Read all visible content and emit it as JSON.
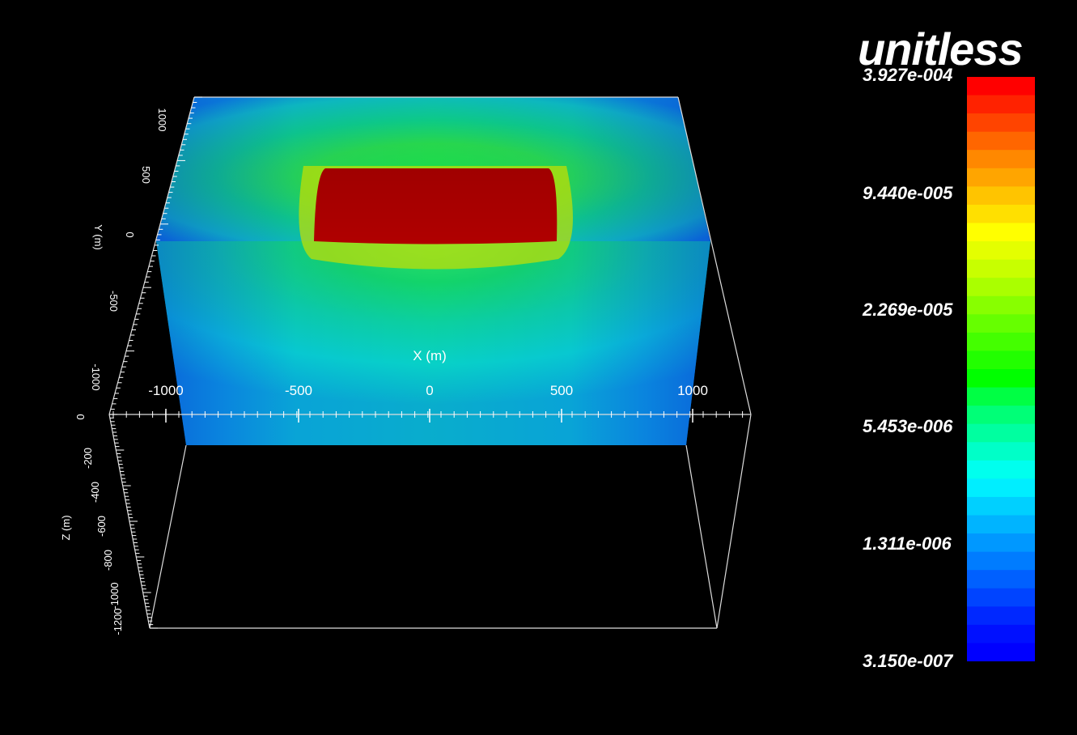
{
  "colorbar": {
    "title": "unitless",
    "labels": [
      "3.927e-004",
      "9.440e-005",
      "2.269e-005",
      "5.453e-006",
      "1.311e-006",
      "3.150e-007"
    ],
    "colors_top_to_bottom": [
      "#ff0000",
      "#ff2200",
      "#ff4400",
      "#ff6600",
      "#ff8800",
      "#ffa500",
      "#ffc400",
      "#ffe000",
      "#ffff00",
      "#e4ff00",
      "#c8ff00",
      "#aaff00",
      "#88ff00",
      "#66ff00",
      "#44ff00",
      "#22ff00",
      "#00ff00",
      "#00ff44",
      "#00ff77",
      "#00ffa0",
      "#00ffc8",
      "#00ffee",
      "#00eeff",
      "#00d0ff",
      "#00b4ff",
      "#0098ff",
      "#007cff",
      "#0060ff",
      "#0044ff",
      "#0028ff",
      "#0010ff",
      "#0000ff"
    ]
  },
  "axes": {
    "x": {
      "label": "X (m)",
      "ticks": [
        "-1000",
        "-500",
        "0",
        "500",
        "1000"
      ]
    },
    "y": {
      "label": "Y (m)",
      "ticks": [
        "1000",
        "500",
        "0",
        "-500",
        "-1000"
      ]
    },
    "z": {
      "label": "Z (m)",
      "ticks": [
        "0",
        "-200",
        "-400",
        "-600",
        "-800",
        "-1000",
        "-1200"
      ]
    }
  }
}
